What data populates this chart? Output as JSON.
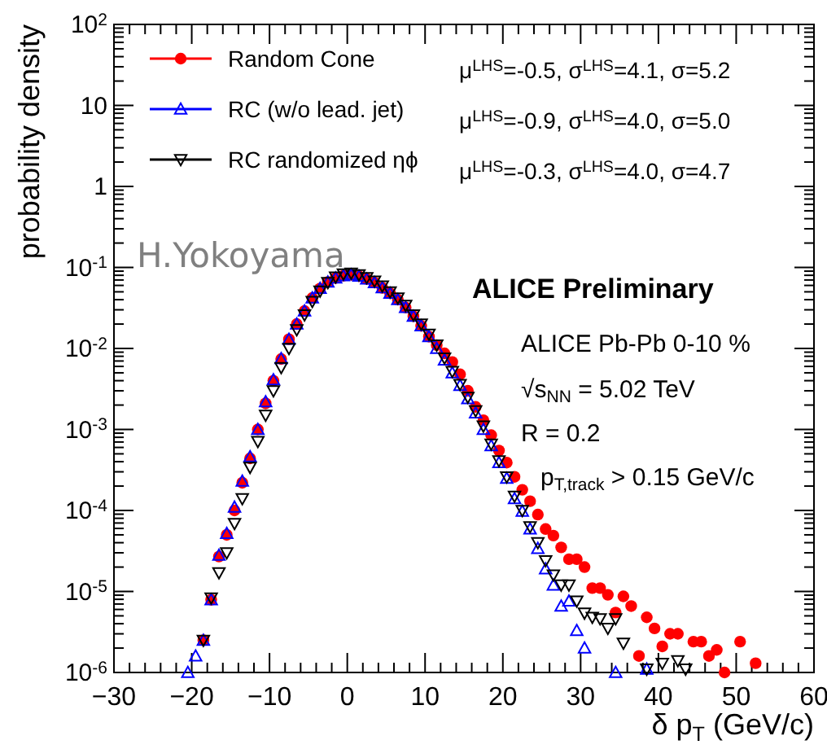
{
  "chart_data": {
    "type": "scatter",
    "xlabel": "δ p$_{T}$ (GeV/c)",
    "ylabel": "probability density",
    "log": "y",
    "xlim": [
      -30,
      60
    ],
    "xticks": [
      -30,
      {
        "value": -28,
        "label": null
      },
      {
        "value": -26,
        "label": null
      },
      {
        "value": -24,
        "label": null
      },
      {
        "value": -22,
        "label": null
      },
      -20,
      {
        "value": -18,
        "label": null
      },
      {
        "value": -16,
        "label": null
      },
      {
        "value": -14,
        "label": null
      },
      {
        "value": -12,
        "label": null
      },
      -10,
      {
        "value": -8,
        "label": null
      },
      {
        "value": -6,
        "label": null
      },
      {
        "value": -4,
        "label": null
      },
      {
        "value": -2,
        "label": null
      },
      0,
      {
        "value": 2,
        "label": null
      },
      {
        "value": 4,
        "label": null
      },
      {
        "value": 6,
        "label": null
      },
      {
        "value": 8,
        "label": null
      },
      10,
      {
        "value": 12,
        "label": null
      },
      {
        "value": 14,
        "label": null
      },
      {
        "value": 16,
        "label": null
      },
      {
        "value": 18,
        "label": null
      },
      20,
      {
        "value": 22,
        "label": null
      },
      {
        "value": 24,
        "label": null
      },
      {
        "value": 26,
        "label": null
      },
      {
        "value": 28,
        "label": null
      },
      30,
      {
        "value": 32,
        "label": null
      },
      {
        "value": 34,
        "label": null
      },
      {
        "value": 36,
        "label": null
      },
      {
        "value": 38,
        "label": null
      },
      40,
      {
        "value": 42,
        "label": null
      },
      {
        "value": 44,
        "label": null
      },
      {
        "value": 46,
        "label": null
      },
      {
        "value": 48,
        "label": null
      },
      50,
      {
        "value": 52,
        "label": null
      },
      {
        "value": 54,
        "label": null
      },
      {
        "value": 56,
        "label": null
      },
      {
        "value": 58,
        "label": null
      },
      60
    ],
    "ylim": [
      1e-06,
      100
    ],
    "yticks": [
      {
        "value": 1e-06,
        "label": "10$^{-6}$"
      },
      {
        "value": 1e-05,
        "label": "10$^{-5}$"
      },
      {
        "value": 0.0001,
        "label": "10$^{-4}$"
      },
      {
        "value": 0.001,
        "label": "10$^{-3}$"
      },
      {
        "value": 0.01,
        "label": "10$^{-2}$"
      },
      {
        "value": 0.1,
        "label": "10$^{-1}$"
      },
      1,
      10,
      {
        "value": 100,
        "label": "10$^{2}$"
      }
    ],
    "grid": false,
    "legend": "top left",
    "series": [
      {
        "name": "Random Cone",
        "color": "#ff0000",
        "marker": "circle",
        "x": [
          -18.5,
          -17.5,
          -16.5,
          -15.5,
          -14.5,
          -13.5,
          -12.5,
          -11.5,
          -10.5,
          -9.5,
          -8.5,
          -7.5,
          -6.5,
          -5.5,
          -4.5,
          -3.5,
          -2.5,
          -1.5,
          -0.5,
          0.5,
          1.5,
          2.5,
          3.5,
          4.5,
          5.5,
          6.5,
          7.5,
          8.5,
          9.5,
          10.5,
          11.5,
          12.5,
          13.5,
          14.5,
          15.5,
          16.5,
          17.5,
          18.5,
          19.5,
          20.5,
          21.5,
          22.5,
          23.5,
          24.5,
          25.5,
          26.5,
          27.5,
          28.5,
          29.5,
          30.5,
          31.5,
          32.5,
          33.5,
          34.5,
          35.5,
          36.5,
          37.5,
          38.5,
          39.5,
          40.5,
          41.5,
          42.5,
          44.5,
          45.5,
          46.5,
          47.5,
          48.5,
          50.5,
          52.5
        ],
        "values": [
          2.5e-06,
          7.9e-06,
          2.7e-05,
          5e-05,
          0.0001,
          0.00022,
          0.00044,
          0.001,
          0.0021,
          0.004,
          0.0074,
          0.013,
          0.02,
          0.029,
          0.042,
          0.055,
          0.066,
          0.074,
          0.079,
          0.081,
          0.078,
          0.072,
          0.065,
          0.056,
          0.048,
          0.04,
          0.032,
          0.025,
          0.019,
          0.014,
          0.011,
          0.0087,
          0.0068,
          0.0048,
          0.003,
          0.0019,
          0.0013,
          0.00085,
          0.00055,
          0.00039,
          0.00026,
          0.00018,
          0.00013,
          8.9e-05,
          5.9e-05,
          4.9e-05,
          3.5e-05,
          2.5e-05,
          2.5e-05,
          2e-05,
          1.1e-05,
          1.1e-05,
          9.1e-06,
          5.5e-06,
          8.7e-06,
          6.6e-06,
          1.6e-06,
          4.8e-06,
          3.5e-06,
          2.1e-06,
          3e-06,
          3e-06,
          2.4e-06,
          2.4e-06,
          1.6e-06,
          1.9e-06,
          1e-06,
          2.4e-06,
          1.3e-06
        ]
      },
      {
        "name": "RC (w/o lead. jet)",
        "color": "#0000ff",
        "marker": "triangle",
        "x": [
          -20.5,
          -19.5,
          -18.5,
          -17.5,
          -16.5,
          -15.5,
          -14.5,
          -13.5,
          -12.5,
          -11.5,
          -10.5,
          -9.5,
          -8.5,
          -7.5,
          -6.5,
          -5.5,
          -4.5,
          -3.5,
          -2.5,
          -1.5,
          -0.5,
          0.5,
          1.5,
          2.5,
          3.5,
          4.5,
          5.5,
          6.5,
          7.5,
          8.5,
          9.5,
          10.5,
          11.5,
          12.5,
          13.5,
          14.5,
          15.5,
          16.5,
          17.5,
          18.5,
          19.5,
          20.5,
          21.5,
          22.5,
          23.5,
          24.5,
          25.5,
          26.5,
          27.5,
          28.5,
          29.5,
          30.5,
          34.5,
          38.5
        ],
        "values": [
          1e-06,
          1.6e-06,
          2.5e-06,
          7.9e-06,
          2.8e-05,
          5.2e-05,
          0.00011,
          0.00023,
          0.00046,
          0.001,
          0.0022,
          0.0041,
          0.0075,
          0.013,
          0.02,
          0.029,
          0.042,
          0.055,
          0.066,
          0.074,
          0.079,
          0.081,
          0.078,
          0.072,
          0.065,
          0.056,
          0.048,
          0.04,
          0.032,
          0.025,
          0.019,
          0.014,
          0.01,
          0.0072,
          0.005,
          0.0035,
          0.0024,
          0.0016,
          0.001,
          0.00063,
          0.00039,
          0.00025,
          0.00014,
          9.8e-05,
          5.9e-05,
          3.4e-05,
          1.9e-05,
          1.2e-05,
          6.6e-06,
          7.6e-06,
          3.3e-06,
          2e-06,
          1e-06,
          1.1e-06
        ]
      },
      {
        "name": "RC randomized ηϕ",
        "color": "#000000",
        "marker": "triangle-down",
        "x": [
          -18.5,
          -17.5,
          -16.5,
          -15.5,
          -14.5,
          -13.5,
          -12.5,
          -11.5,
          -10.5,
          -9.5,
          -8.5,
          -7.5,
          -6.5,
          -5.5,
          -4.5,
          -3.5,
          -2.5,
          -1.5,
          -0.5,
          0.5,
          1.5,
          2.5,
          3.5,
          4.5,
          5.5,
          6.5,
          7.5,
          8.5,
          9.5,
          10.5,
          11.5,
          12.5,
          13.5,
          14.5,
          15.5,
          16.5,
          17.5,
          18.5,
          19.5,
          20.5,
          21.5,
          22.5,
          23.5,
          24.5,
          25.5,
          26.5,
          27.5,
          28.5,
          29.5,
          30.5,
          31.5,
          32.5,
          33.5,
          34.5,
          35.5,
          38.5,
          40.5,
          42.5,
          43.5
        ],
        "values": [
          2.5e-06,
          8.3e-06,
          1.7e-05,
          3e-05,
          6.9e-05,
          0.00014,
          0.00034,
          0.00071,
          0.0015,
          0.003,
          0.0058,
          0.01,
          0.017,
          0.026,
          0.038,
          0.051,
          0.065,
          0.076,
          0.083,
          0.085,
          0.081,
          0.075,
          0.068,
          0.059,
          0.05,
          0.042,
          0.034,
          0.026,
          0.02,
          0.015,
          0.011,
          0.0076,
          0.0052,
          0.0036,
          0.0025,
          0.0017,
          0.0011,
          0.00066,
          0.00041,
          0.00026,
          0.00015,
          0.0001,
          6.3e-05,
          4e-05,
          2.4e-05,
          1.6e-05,
          1.2e-05,
          1.2e-05,
          7.6e-06,
          5.4e-06,
          4.8e-06,
          4.6e-06,
          3.5e-06,
          4.6e-06,
          2.3e-06,
          1.1e-06,
          1.3e-06,
          1.4e-06,
          1.1e-06
        ]
      }
    ],
    "annotations": [
      "μ$^{LHS}$=-0.5, σ$^{LHS}$=4.1, σ=5.2",
      "μ$^{LHS}$=-0.9, σ$^{LHS}$=4.0, σ=5.0",
      "μ$^{LHS}$=-0.3, σ$^{LHS}$=4.0, σ=4.7",
      "H.Yokoyama",
      "ALICE Preliminary",
      "ALICE Pb-Pb 0-10 %",
      "√s$_{NN}$ = 5.02 TeV",
      "R = 0.2",
      "p$_{T,track}$ > 0.15 GeV/c"
    ]
  }
}
